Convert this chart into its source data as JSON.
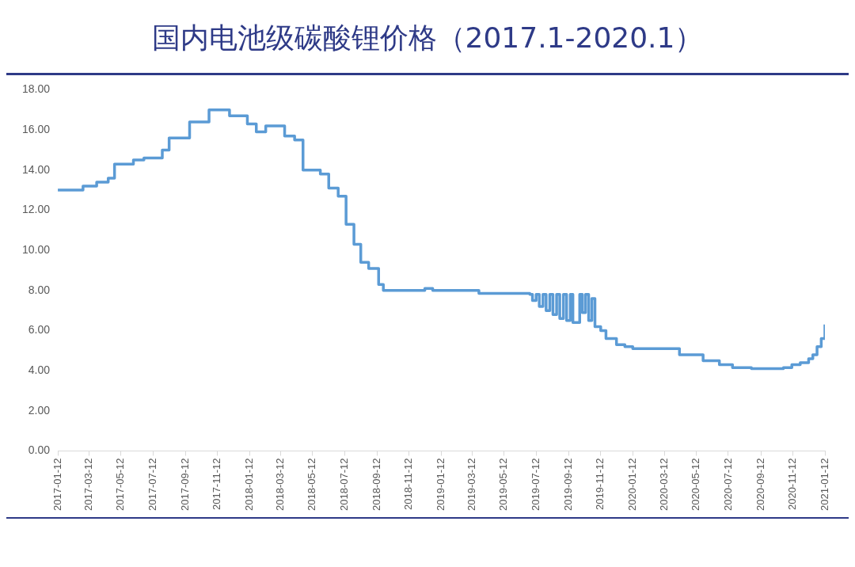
{
  "chart_data": {
    "type": "step",
    "title": "国内电池级碳酸锂价格（2017.1-2020.1）",
    "series": [
      {
        "color": "#5b9bd5",
        "x": [
          "2017-01-12",
          "2017-03-01",
          "2017-03-27",
          "2017-04-18",
          "2017-04-30",
          "2017-06-05",
          "2017-06-25",
          "2017-07-30",
          "2017-08-12",
          "2017-09-20",
          "2017-10-27",
          "2017-12-05",
          "2018-01-08",
          "2018-01-25",
          "2018-02-12",
          "2018-03-20",
          "2018-04-08",
          "2018-04-24",
          "2018-05-27",
          "2018-06-12",
          "2018-06-30",
          "2018-07-15",
          "2018-07-30",
          "2018-08-12",
          "2018-08-27",
          "2018-09-15",
          "2018-09-24",
          "2018-12-12",
          "2018-12-27",
          "2019-03-25",
          "2019-06-30",
          "2019-07-05",
          "2019-07-12",
          "2019-07-18",
          "2019-07-25",
          "2019-07-31",
          "2019-08-07",
          "2019-08-13",
          "2019-08-20",
          "2019-08-26",
          "2019-09-02",
          "2019-09-08",
          "2019-09-15",
          "2019-09-20",
          "2019-10-03",
          "2019-10-08",
          "2019-10-14",
          "2019-10-20",
          "2019-10-26",
          "2019-11-01",
          "2019-11-12",
          "2019-11-22",
          "2019-12-12",
          "2019-12-28",
          "2020-01-12",
          "2020-03-12",
          "2020-04-10",
          "2020-05-25",
          "2020-06-25",
          "2020-07-20",
          "2020-08-25",
          "2020-10-25",
          "2020-11-10",
          "2020-11-26",
          "2020-12-12",
          "2020-12-20",
          "2020-12-28",
          "2021-01-05",
          "2021-01-12"
        ],
        "values": [
          13.0,
          13.2,
          13.4,
          13.6,
          14.3,
          14.5,
          14.6,
          15.0,
          15.6,
          16.4,
          17.0,
          16.7,
          16.3,
          15.9,
          16.2,
          15.7,
          15.5,
          14.0,
          13.8,
          13.1,
          12.7,
          11.3,
          10.3,
          9.4,
          9.1,
          8.3,
          8.0,
          8.1,
          8.0,
          7.85,
          7.8,
          7.5,
          7.8,
          7.2,
          7.8,
          7.0,
          7.8,
          6.8,
          7.8,
          6.6,
          7.8,
          6.5,
          7.8,
          6.4,
          7.8,
          6.9,
          7.8,
          6.5,
          7.6,
          6.2,
          6.0,
          5.6,
          5.3,
          5.2,
          5.1,
          5.1,
          4.8,
          4.5,
          4.3,
          4.15,
          4.1,
          4.15,
          4.3,
          4.4,
          4.6,
          4.8,
          5.2,
          5.6,
          6.3
        ]
      }
    ],
    "xlim": [
      "2017-01-12",
      "2021-01-12"
    ],
    "xticks": [
      "2017-01-12",
      "2017-03-12",
      "2017-05-12",
      "2017-07-12",
      "2017-09-12",
      "2017-11-12",
      "2018-01-12",
      "2018-03-12",
      "2018-05-12",
      "2018-07-12",
      "2018-09-12",
      "2018-11-12",
      "2019-01-12",
      "2019-03-12",
      "2019-05-12",
      "2019-07-12",
      "2019-09-12",
      "2019-11-12",
      "2020-01-12",
      "2020-03-12",
      "2020-05-12",
      "2020-07-12",
      "2020-09-12",
      "2020-11-12",
      "2021-01-12"
    ],
    "ylim": [
      0,
      18
    ],
    "yticks": [
      {
        "value": 0,
        "label": "0.00"
      },
      {
        "value": 2,
        "label": "2.00"
      },
      {
        "value": 4,
        "label": "4.00"
      },
      {
        "value": 6,
        "label": "6.00"
      },
      {
        "value": 8,
        "label": "8.00"
      },
      {
        "value": 10,
        "label": "10.00"
      },
      {
        "value": 12,
        "label": "12.00"
      },
      {
        "value": 14,
        "label": "14.00"
      },
      {
        "value": 16,
        "label": "16.00"
      },
      {
        "value": 18,
        "label": "18.00"
      }
    ],
    "grid": false,
    "legend": false
  }
}
